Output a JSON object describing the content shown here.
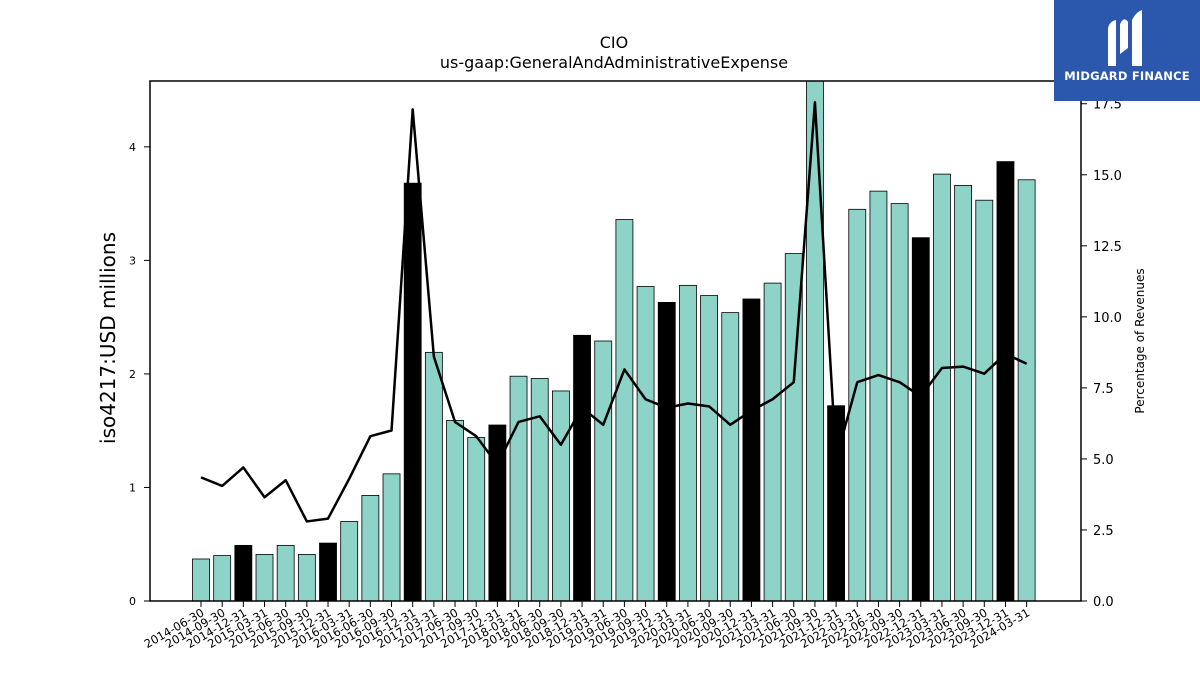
{
  "chart_data": {
    "type": "bar",
    "title": "CIO",
    "subtitle": "us-gaap:GeneralAndAdministrativeExpense",
    "ylabel": "iso4217:USD  millions",
    "ylabel_right": "Percentage of Revenues",
    "ylim": [
      0,
      4.58
    ],
    "ylim_right": [
      0,
      18.3
    ],
    "yticks": [
      0,
      1,
      2,
      3,
      4
    ],
    "yticks_right": [
      "0.0",
      "2.5",
      "5.0",
      "7.5",
      "10.0",
      "12.5",
      "15.0",
      "17.5"
    ],
    "categories": [
      "2014-06-30",
      "2014-09-30",
      "2014-12-31",
      "2015-03-31",
      "2015-06-30",
      "2015-09-30",
      "2015-12-31",
      "2016-03-31",
      "2016-06-30",
      "2016-09-30",
      "2016-12-31",
      "2017-03-31",
      "2017-06-30",
      "2017-09-30",
      "2017-12-31",
      "2018-03-31",
      "2018-06-30",
      "2018-09-30",
      "2018-12-31",
      "2019-03-31",
      "2019-06-30",
      "2019-09-30",
      "2019-12-31",
      "2020-03-31",
      "2020-06-30",
      "2020-09-30",
      "2020-12-31",
      "2021-03-31",
      "2021-06-30",
      "2021-09-30",
      "2021-12-31",
      "2022-03-31",
      "2022-06-30",
      "2022-09-30",
      "2022-12-31",
      "2023-03-31",
      "2023-06-30",
      "2023-09-30",
      "2023-12-31",
      "2024-03-31"
    ],
    "series": [
      {
        "type": "bar",
        "values": [
          0.37,
          0.4,
          0.49,
          0.41,
          0.49,
          0.41,
          0.51,
          0.7,
          0.93,
          1.12,
          3.68,
          2.19,
          1.59,
          1.44,
          1.55,
          1.98,
          1.96,
          1.85,
          2.34,
          2.29,
          3.36,
          2.77,
          2.63,
          2.78,
          2.69,
          2.54,
          2.66,
          2.8,
          3.06,
          4.58,
          1.72,
          3.45,
          3.61,
          3.5,
          3.2,
          3.76,
          3.66,
          3.53,
          3.87,
          3.71
        ],
        "highlight": [
          false,
          false,
          true,
          false,
          false,
          false,
          true,
          false,
          false,
          false,
          true,
          false,
          false,
          false,
          true,
          false,
          false,
          false,
          true,
          false,
          false,
          false,
          true,
          false,
          false,
          false,
          true,
          false,
          false,
          false,
          true,
          false,
          false,
          false,
          true,
          false,
          false,
          false,
          true,
          false
        ]
      },
      {
        "type": "line",
        "axis": "right",
        "values": [
          4.35,
          4.05,
          4.7,
          3.65,
          4.25,
          2.8,
          2.9,
          4.3,
          5.8,
          6.0,
          17.3,
          8.6,
          6.3,
          5.8,
          4.8,
          6.3,
          6.5,
          5.5,
          6.8,
          6.2,
          8.15,
          7.1,
          6.8,
          6.95,
          6.85,
          6.2,
          6.7,
          7.1,
          7.7,
          17.55,
          5.0,
          7.7,
          7.95,
          7.7,
          7.2,
          8.2,
          8.25,
          8.0,
          8.7,
          8.35
        ]
      }
    ],
    "colors": {
      "bar": "#8dd3c7",
      "bar_highlight": "#000000",
      "line": "#000000"
    },
    "grid": false
  },
  "logo": {
    "text": "MIDGARD FINANCE",
    "background": "#2b58ad"
  }
}
